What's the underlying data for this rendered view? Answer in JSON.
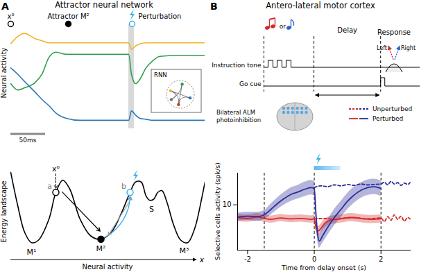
{
  "panel_labels": [
    "A",
    "B"
  ],
  "titles": [
    "Attractor neural network",
    "Antero-lateral motor cortex"
  ],
  "chart_data": [
    {
      "type": "line",
      "ylabel": "Neural activity",
      "tick_labels": false,
      "xlim": [
        0,
        280
      ],
      "ylim": [
        0,
        1
      ],
      "series": [
        {
          "color": "#f0b323",
          "x": [
            0,
            10,
            20,
            35,
            45,
            55,
            65,
            80,
            100,
            140,
            170,
            174,
            180,
            186,
            195,
            205,
            215,
            240,
            280
          ],
          "values": [
            0.81,
            0.88,
            0.91,
            0.86,
            0.84,
            0.82,
            0.82,
            0.82,
            0.82,
            0.82,
            0.82,
            0.76,
            0.79,
            0.81,
            0.82,
            0.82,
            0.82,
            0.82,
            0.82
          ]
        },
        {
          "color": "#2e9e4f",
          "x": [
            0,
            10,
            20,
            35,
            45,
            55,
            65,
            80,
            100,
            140,
            170,
            174,
            180,
            186,
            195,
            205,
            215,
            240,
            280
          ],
          "values": [
            0.43,
            0.37,
            0.39,
            0.44,
            0.52,
            0.68,
            0.73,
            0.71,
            0.71,
            0.71,
            0.71,
            0.52,
            0.43,
            0.47,
            0.58,
            0.65,
            0.69,
            0.7,
            0.7
          ]
        },
        {
          "color": "#2c78b8",
          "x": [
            0,
            10,
            20,
            35,
            45,
            55,
            65,
            80,
            100,
            140,
            170,
            174,
            180,
            186,
            195,
            205,
            215,
            240,
            280
          ],
          "values": [
            0.58,
            0.52,
            0.45,
            0.35,
            0.28,
            0.22,
            0.15,
            0.1,
            0.08,
            0.08,
            0.08,
            0.17,
            0.13,
            0.1,
            0.09,
            0.08,
            0.08,
            0.08,
            0.08
          ]
        }
      ],
      "perturbation_window": [
        170,
        178
      ],
      "markers": [
        {
          "label": "x⁰",
          "x": 0,
          "marker": "open_circle",
          "color": "#000000"
        },
        {
          "label": "Attractor M²",
          "x": 83,
          "marker": "filled_circle",
          "color": "#000000"
        },
        {
          "label": "Perturbation",
          "x": 175,
          "marker": "open_circle",
          "color": "#3ab0e6"
        }
      ],
      "scale_bar": {
        "value": 50,
        "label": "50ms"
      },
      "inset_label": "RNN"
    },
    {
      "type": "line",
      "xlabel": "Neural activity",
      "ylabel": "Energy landscape",
      "axis_symbol": "x",
      "tick_labels": false,
      "xlim": [
        0,
        280
      ],
      "ylim": [
        0,
        1
      ],
      "color": "#000000",
      "x": [
        0,
        10,
        20,
        30,
        40,
        55,
        65,
        75,
        85,
        100,
        115,
        130,
        145,
        160,
        172,
        180,
        188,
        195,
        200,
        206,
        212,
        218,
        225,
        235,
        245,
        255,
        265,
        275,
        280
      ],
      "values": [
        0.96,
        0.58,
        0.27,
        0.15,
        0.18,
        0.42,
        0.73,
        0.87,
        0.77,
        0.42,
        0.23,
        0.19,
        0.27,
        0.5,
        0.73,
        0.85,
        0.85,
        0.69,
        0.64,
        0.65,
        0.73,
        0.75,
        0.62,
        0.35,
        0.18,
        0.15,
        0.31,
        0.65,
        0.85
      ],
      "points": [
        {
          "label": "a",
          "x": 65,
          "y": 0.73,
          "marker": "open_circle",
          "color": "#000000"
        },
        {
          "label": "b",
          "x": 172,
          "y": 0.73,
          "marker": "open_circle",
          "color": "#3ab0e6"
        },
        {
          "x": 130,
          "y": 0.19,
          "marker": "filled_circle",
          "color": "#000000"
        }
      ],
      "initial_state": {
        "label": "x⁰",
        "x": 65,
        "y": 1.0
      },
      "well_labels": [
        {
          "text": "M¹",
          "x": 30
        },
        {
          "text": "M²",
          "x": 130
        },
        {
          "text": "M³",
          "x": 250
        },
        {
          "text": "S",
          "x": 203
        }
      ]
    },
    {
      "type": "line",
      "xlabel": "Time from delay onset (s)",
      "ylabel": "Selective cells activity (spk/s)",
      "xlim": [
        -2.3,
        2.9
      ],
      "ylim": [
        0,
        17
      ],
      "xticks": [
        -2,
        0,
        2
      ],
      "yticks": [
        10
      ],
      "epoch_lines": [
        -1.5,
        0,
        2
      ],
      "photoinhibition_window": [
        0,
        0.8
      ],
      "legend": "top-right",
      "series": [
        {
          "name": "Unperturbed",
          "line_style": "dashed",
          "traces": [
            {
              "color": "#d42a2a",
              "x": [
                0,
                0.3,
                0.6,
                0.9,
                1.2,
                1.5,
                1.8,
                2.0,
                2.1,
                2.2,
                2.3,
                2.4,
                2.5,
                2.6,
                2.7,
                2.8,
                2.87
              ],
              "values": [
                6.9,
                7.0,
                6.8,
                7.1,
                7.2,
                6.9,
                7.0,
                7.1,
                6.3,
                7.4,
                6.6,
                7.8,
                6.8,
                7.5,
                6.4,
                7.2,
                6.9
              ]
            },
            {
              "color": "#2a2c9c",
              "x": [
                0,
                0.2,
                0.4,
                0.6,
                0.8,
                1.0,
                1.2,
                1.4,
                1.6,
                1.8,
                2.0,
                2.1,
                2.2,
                2.3,
                2.4,
                2.5,
                2.6,
                2.7,
                2.8,
                2.87
              ],
              "values": [
                13.8,
                14.2,
                14.0,
                14.4,
                14.2,
                14.5,
                14.3,
                14.6,
                14.4,
                14.5,
                14.6,
                15.0,
                14.4,
                15.2,
                14.6,
                14.9,
                14.3,
                14.8,
                14.5,
                14.9
              ]
            }
          ]
        },
        {
          "name": "Perturbed",
          "line_style": "solid",
          "traces": [
            {
              "color": "#d42a2a",
              "x": [
                -2.3,
                -2.0,
                -1.7,
                -1.5,
                -1.3,
                -1.0,
                -0.7,
                -0.4,
                -0.1,
                0,
                0.05,
                0.1,
                0.2,
                0.3,
                0.5,
                0.8,
                1.1,
                1.4,
                1.7,
                2.0
              ],
              "values": [
                7.2,
                7.0,
                7.3,
                7.0,
                6.8,
                7.1,
                6.9,
                7.0,
                6.8,
                6.9,
                5.0,
                4.2,
                4.8,
                5.8,
                6.6,
                6.9,
                7.2,
                7.0,
                6.8,
                6.9
              ],
              "errors": [
                0.8,
                0.8,
                0.8,
                0.8,
                0.8,
                0.8,
                0.8,
                0.8,
                0.8,
                0.8,
                0.9,
                1.0,
                1.0,
                1.0,
                0.9,
                0.9,
                0.9,
                0.9,
                0.9,
                0.9
              ]
            },
            {
              "color": "#2a2c9c",
              "x": [
                -2.3,
                -2.0,
                -1.7,
                -1.5,
                -1.3,
                -1.1,
                -0.9,
                -0.7,
                -0.5,
                -0.3,
                -0.1,
                0,
                0.05,
                0.1,
                0.15,
                0.25,
                0.4,
                0.6,
                0.8,
                1.0,
                1.2,
                1.4,
                1.6,
                1.8,
                2.0
              ],
              "values": [
                7.3,
                7.5,
                7.4,
                7.8,
                9.0,
                10.3,
                11.4,
                12.3,
                12.8,
                13.4,
                13.8,
                13.6,
                8.0,
                3.5,
                2.0,
                3.2,
                5.0,
                7.2,
                9.0,
                10.8,
                12.2,
                13.2,
                13.8,
                14.0,
                13.6
              ],
              "errors": [
                0.9,
                0.9,
                1.0,
                1.0,
                1.2,
                1.3,
                1.4,
                1.5,
                1.5,
                1.6,
                1.6,
                1.6,
                1.6,
                1.5,
                1.5,
                1.6,
                1.7,
                1.8,
                1.8,
                1.8,
                1.8,
                1.7,
                1.7,
                1.7,
                1.7
              ]
            }
          ]
        }
      ]
    }
  ],
  "task": {
    "rows": [
      "Instruction tone",
      "Go cue"
    ],
    "cue_word": "or",
    "tone_colors": [
      "#d42a2a",
      "#2b5fd0"
    ],
    "epochs": [
      "Delay",
      "Response"
    ],
    "lick_labels": [
      "Left",
      "Right"
    ],
    "lick_colors": [
      "#d42a2a",
      "#2b5fd0"
    ],
    "photoinhibition_label": [
      "Bilateral ALM",
      "photoinhibition"
    ]
  }
}
